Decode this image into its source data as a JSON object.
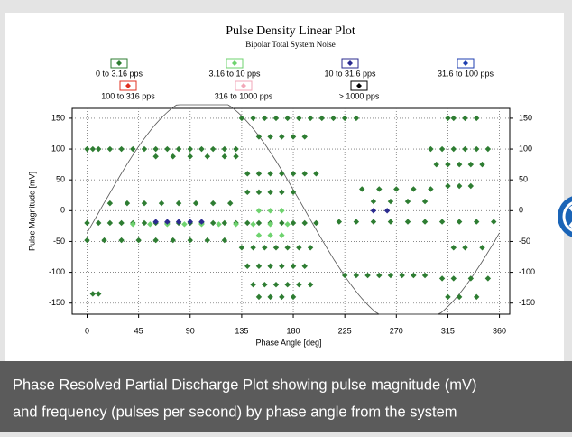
{
  "chart_data": {
    "type": "scatter",
    "title": "Pulse Density Linear Plot",
    "subtitle": "Bipolar Total System Noise",
    "x_label": "Phase Angle [deg]",
    "y_label": "Pulse Magnitude [mV]",
    "xlim": [
      -13,
      369
    ],
    "ylim": [
      -168,
      166
    ],
    "xticks": [
      0,
      45,
      90,
      135,
      180,
      225,
      270,
      315,
      360
    ],
    "yticks": [
      -150,
      -100,
      -50,
      0,
      50,
      100,
      150
    ],
    "grid": true,
    "series": [
      {
        "name": "0 to 3.16 pps",
        "color": "#2e7d32",
        "x": [
          0,
          5,
          10,
          20,
          30,
          40,
          50,
          60,
          70,
          80,
          90,
          100,
          110,
          120,
          130,
          60,
          75,
          90,
          105,
          120,
          130,
          0,
          10,
          20,
          30,
          40,
          50,
          60,
          70,
          80,
          90,
          100,
          110,
          120,
          130,
          140,
          150,
          160,
          170,
          180,
          190,
          200,
          220,
          235,
          250,
          265,
          280,
          295,
          310,
          325,
          340,
          355,
          20,
          35,
          50,
          65,
          80,
          95,
          110,
          125,
          140,
          150,
          160,
          170,
          180,
          190,
          200,
          135,
          145,
          155,
          165,
          175,
          185,
          195,
          140,
          150,
          160,
          170,
          180,
          190,
          145,
          155,
          165,
          175,
          185,
          195,
          150,
          160,
          170,
          180,
          135,
          145,
          155,
          165,
          175,
          185,
          195,
          205,
          215,
          225,
          235,
          150,
          160,
          170,
          180,
          190,
          140,
          150,
          160,
          170,
          180,
          225,
          235,
          245,
          255,
          265,
          275,
          285,
          295,
          240,
          255,
          270,
          285,
          300,
          250,
          265,
          280,
          295,
          315,
          320,
          330,
          340,
          300,
          310,
          320,
          330,
          340,
          350,
          305,
          315,
          325,
          335,
          345,
          315,
          325,
          335,
          320,
          330,
          345,
          310,
          320,
          335,
          350,
          315,
          325,
          340,
          5,
          10,
          0,
          15,
          30,
          45,
          60,
          75,
          90,
          105,
          120
        ],
        "y": [
          100,
          100,
          100,
          100,
          100,
          100,
          100,
          100,
          100,
          100,
          100,
          100,
          100,
          100,
          100,
          88,
          88,
          88,
          88,
          88,
          88,
          -20,
          -20,
          -20,
          -20,
          -20,
          -20,
          -20,
          -20,
          -20,
          -20,
          -20,
          -20,
          -20,
          -20,
          -20,
          -20,
          -20,
          -20,
          -20,
          -20,
          -20,
          -18,
          -18,
          -18,
          -18,
          -18,
          -18,
          -18,
          -18,
          -18,
          -18,
          12,
          12,
          12,
          12,
          12,
          12,
          12,
          12,
          60,
          60,
          60,
          60,
          60,
          60,
          60,
          -60,
          -60,
          -60,
          -60,
          -60,
          -60,
          -60,
          -90,
          -90,
          -90,
          -90,
          -90,
          -90,
          -120,
          -120,
          -120,
          -120,
          -120,
          -120,
          -140,
          -140,
          -140,
          -140,
          150,
          150,
          150,
          150,
          150,
          150,
          150,
          150,
          150,
          150,
          150,
          120,
          120,
          120,
          120,
          120,
          30,
          30,
          30,
          30,
          30,
          -105,
          -105,
          -105,
          -105,
          -105,
          -105,
          -105,
          -105,
          35,
          35,
          35,
          35,
          35,
          15,
          15,
          15,
          15,
          150,
          150,
          150,
          150,
          100,
          100,
          100,
          100,
          100,
          100,
          75,
          75,
          75,
          75,
          75,
          40,
          40,
          40,
          -60,
          -60,
          -60,
          -110,
          -110,
          -110,
          -110,
          -140,
          -140,
          -140,
          -135,
          -135,
          -48,
          -48,
          -48,
          -48,
          -48,
          -48,
          -48,
          -48,
          -48
        ]
      },
      {
        "name": "3.16 to 10 pps",
        "color": "#6fd36f",
        "x": [
          40,
          55,
          70,
          85,
          100,
          115,
          130,
          145,
          160,
          175,
          150,
          160,
          170,
          150,
          160,
          170
        ],
        "y": [
          -22,
          -22,
          -22,
          -22,
          -22,
          -22,
          -22,
          -22,
          -22,
          -22,
          -40,
          -40,
          -40,
          0,
          0,
          0
        ]
      },
      {
        "name": "10 to 31.6 pps",
        "color": "#2b2b8f",
        "x": [
          60,
          70,
          80,
          90,
          100,
          250,
          262
        ],
        "y": [
          -18,
          -18,
          -18,
          -18,
          -18,
          0,
          0
        ]
      },
      {
        "name": "31.6 to 100 pps",
        "color": "#1f3fb0",
        "x": [],
        "y": []
      },
      {
        "name": "100 to 316 pps",
        "color": "#e03020",
        "x": [],
        "y": []
      },
      {
        "name": "316 to 1000 pps",
        "color": "#f2a7b8",
        "x": [],
        "y": []
      },
      {
        "name": "> 1000 pps",
        "color": "#000000",
        "x": [],
        "y": []
      }
    ]
  },
  "caption": [
    "Phase Resolved Partial Discharge Plot showing pulse magnitude (mV)",
    "and frequency (pulses per second) by phase angle from the system"
  ]
}
